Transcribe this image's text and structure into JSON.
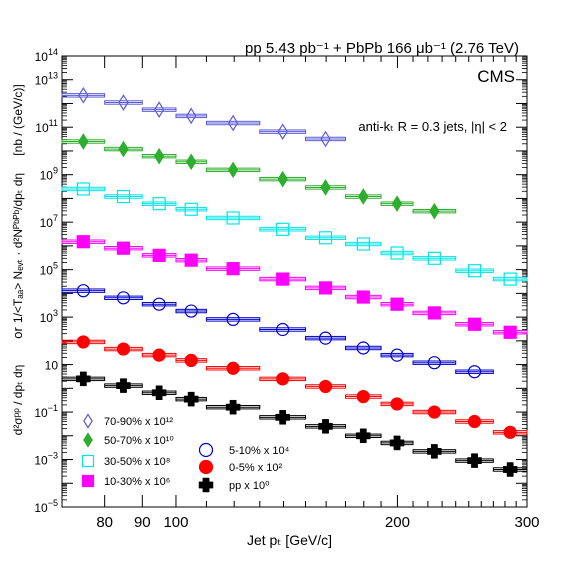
{
  "chart_data": {
    "type": "scatter",
    "header": "pp 5.43 pb⁻¹ + PbPb 166 μb⁻¹ (2.76 TeV)",
    "experiment": "CMS",
    "annotation": "anti-kₜ R = 0.3 jets, |η| < 2",
    "xlabel": "Jet pₜ [GeV/c]",
    "ylabel": {
      "pp_part": "d²σᵖᵖ / dpₜ dη",
      "or": "or",
      "pbpb_part": "1/<Tₐₐ> Nₑᵥₜ · d²Nᴾᵇᴾᵇ/dpₜ dη",
      "unit": "[nb / (GeV/c)]"
    },
    "xscale": "log",
    "yscale": "log",
    "xlim": [
      70,
      300
    ],
    "ylim": [
      1e-05,
      100000000000000.0
    ],
    "xticks": [
      {
        "value": 80,
        "label": "80"
      },
      {
        "value": 90,
        "label": "90"
      },
      {
        "value": 100,
        "label": "100"
      },
      {
        "value": 200,
        "label": "200"
      },
      {
        "value": 300,
        "label": "300"
      }
    ],
    "yticks": [
      {
        "value": 1e-05,
        "base": "10",
        "exp": "−5"
      },
      {
        "value": 0.001,
        "base": "10",
        "exp": "−3"
      },
      {
        "value": 0.1,
        "base": "10",
        "exp": "−1"
      },
      {
        "value": 10,
        "base": "10",
        "exp": ""
      },
      {
        "value": 1000.0,
        "base": "10",
        "exp": "3"
      },
      {
        "value": 100000.0,
        "base": "10",
        "exp": "5"
      },
      {
        "value": 10000000.0,
        "base": "10",
        "exp": "7"
      },
      {
        "value": 1000000000.0,
        "base": "10",
        "exp": "9"
      },
      {
        "value": 100000000000.0,
        "base": "10",
        "exp": "11"
      },
      {
        "value": 10000000000000.0,
        "base": "10",
        "exp": "13"
      },
      {
        "value": 100000000000000.0,
        "base": "10",
        "exp": "14"
      }
    ],
    "bins": [
      [
        70,
        80
      ],
      [
        80,
        90
      ],
      [
        90,
        100
      ],
      [
        100,
        110
      ],
      [
        110,
        130
      ],
      [
        130,
        150
      ],
      [
        150,
        170
      ],
      [
        170,
        190
      ],
      [
        190,
        210
      ],
      [
        210,
        240
      ],
      [
        240,
        270
      ],
      [
        270,
        300
      ]
    ],
    "series": [
      {
        "name": "70-90% x 10¹²",
        "marker": "diamond-open",
        "color": "#5b5bd6",
        "values": [
          2200000000000.0,
          1100000000000.0,
          550000000000.0,
          300000000000.0,
          150000000000.0,
          65000000000.0,
          32000000000.0
        ]
      },
      {
        "name": "50-70% x 10¹⁰",
        "marker": "diamond-filled",
        "color": "#2eae2e",
        "values": [
          25000000000.0,
          12000000000.0,
          6000000000.0,
          3500000000.0,
          1600000000.0,
          650000000.0,
          290000000.0,
          120000000.0,
          60000000.0,
          29000000.0
        ]
      },
      {
        "name": "30-50% x 10⁸",
        "marker": "square-open",
        "color": "#00e6e6",
        "values": [
          250000000.0,
          120000000.0,
          60000000.0,
          35000000.0,
          15000000.0,
          5000000.0,
          2200000.0,
          1200000.0,
          500000.0,
          300000.0,
          90000.0,
          40000.0
        ]
      },
      {
        "name": "10-30% x 10⁶",
        "marker": "square-filled",
        "color": "#ff00ff",
        "values": [
          1500000.0,
          800000.0,
          400000.0,
          250000.0,
          110000.0,
          40000.0,
          17000.0,
          7000.0,
          3500.0,
          1500.0,
          500.0,
          230.0
        ]
      },
      {
        "name": "5-10% x 10⁴",
        "marker": "circle-open",
        "color": "#0000cc",
        "values": [
          13000.0,
          6500.0,
          3500.0,
          1800.0,
          800.0,
          300.0,
          130.0,
          50.0,
          25.0,
          12.0,
          5.0
        ]
      },
      {
        "name": "0-5% x 10²",
        "marker": "circle-filled",
        "color": "#ff0000",
        "values": [
          90.0,
          45.0,
          25.0,
          15.0,
          7.0,
          2.5,
          1.2,
          0.45,
          0.22,
          0.1,
          0.04,
          0.014
        ]
      },
      {
        "name": "pp x 10⁰",
        "marker": "cross",
        "color": "#000000",
        "values": [
          2.5,
          1.3,
          0.65,
          0.35,
          0.16,
          0.06,
          0.025,
          0.01,
          0.005,
          0.0022,
          0.0009,
          0.00038
        ]
      }
    ]
  }
}
